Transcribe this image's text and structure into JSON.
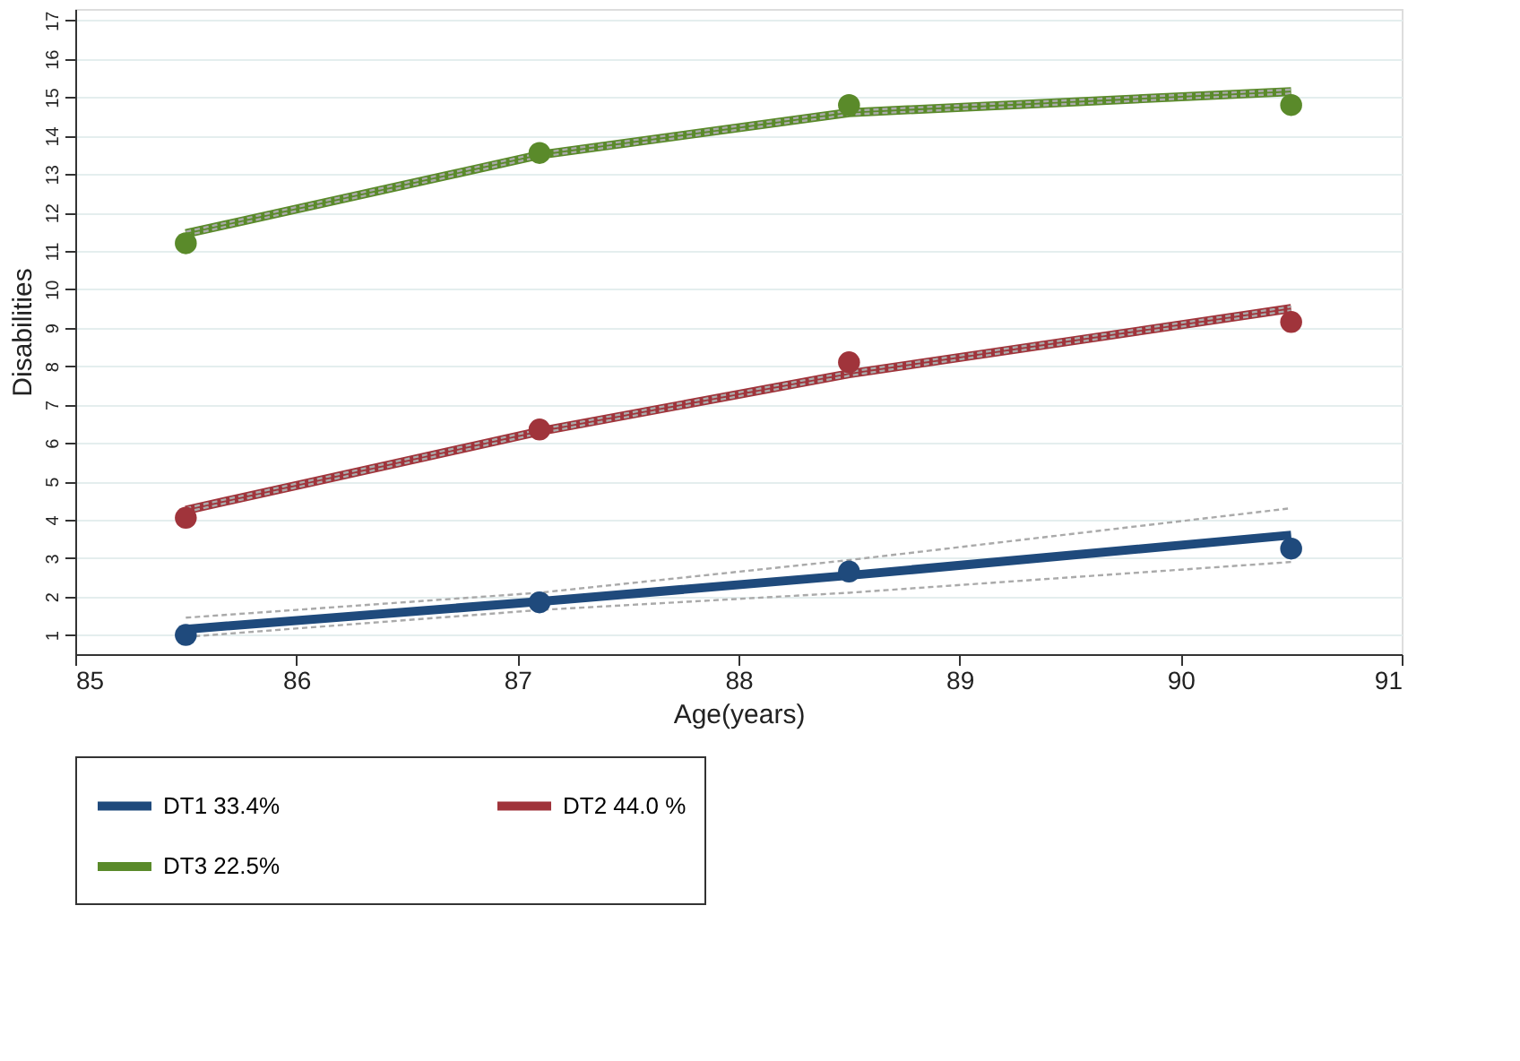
{
  "chart_data": {
    "type": "line",
    "xlabel": "Age(years)",
    "ylabel": "Disabilities",
    "xlim": [
      85,
      91
    ],
    "xticks": [
      85,
      86,
      87,
      88,
      89,
      90,
      91
    ],
    "ylim": [
      0.5,
      17.3
    ],
    "yticks": [
      1,
      2,
      3,
      4,
      5,
      6,
      7,
      8,
      9,
      10,
      11,
      12,
      13,
      14,
      15,
      16,
      17
    ],
    "grid": "y",
    "legend": "bottom",
    "marker": "none",
    "series": [
      {
        "color": "#aaaaaa",
        "line_style": "dashed",
        "x": [
          85.5,
          87.1,
          88.5,
          90.5
        ],
        "values": [
          0.95,
          1.65,
          2.1,
          2.9
        ]
      },
      {
        "color": "#aaaaaa",
        "line_style": "dashed",
        "x": [
          85.5,
          87.1,
          88.5,
          90.5
        ],
        "values": [
          1.45,
          2.1,
          2.95,
          4.3
        ]
      },
      {
        "name": "DT1 33.4%",
        "color": "#1f4a7c",
        "x": [
          85.5,
          87.1,
          88.5,
          90.5
        ],
        "values": [
          1.15,
          1.87,
          2.55,
          3.6
        ]
      },
      {
        "name": "DT2 44.0 %",
        "color": "#a0343b",
        "x": [
          85.5,
          87.1,
          88.5,
          90.5
        ],
        "values": [
          4.25,
          6.3,
          7.8,
          9.5
        ]
      },
      {
        "name": "DT3 22.5%",
        "color": "#5a8a2a",
        "x": [
          85.5,
          87.1,
          88.5,
          90.5
        ],
        "values": [
          11.45,
          13.5,
          14.6,
          15.15
        ]
      },
      {
        "color": "#aaaaaa",
        "line_style": "dashed",
        "x": [
          85.5,
          87.1,
          88.5,
          90.5
        ],
        "values": [
          4.2,
          6.25,
          7.75,
          9.45
        ]
      },
      {
        "color": "#aaaaaa",
        "line_style": "dashed",
        "x": [
          85.5,
          87.1,
          88.5,
          90.5
        ],
        "values": [
          4.3,
          6.35,
          7.85,
          9.55
        ]
      },
      {
        "color": "#aaaaaa",
        "line_style": "dashed",
        "x": [
          85.5,
          87.1,
          88.5,
          90.5
        ],
        "values": [
          11.4,
          13.45,
          14.55,
          15.1
        ]
      },
      {
        "color": "#aaaaaa",
        "line_style": "dashed",
        "x": [
          85.5,
          87.1,
          88.5,
          90.5
        ],
        "values": [
          11.5,
          13.55,
          14.65,
          15.2
        ]
      },
      {
        "type": "scatter",
        "marker": "circle",
        "color": "#1f4a7c",
        "x": [
          85.5,
          87.1,
          88.5,
          90.5
        ],
        "values": [
          1.0,
          1.85,
          2.65,
          3.25
        ]
      },
      {
        "type": "scatter",
        "marker": "circle",
        "color": "#a0343b",
        "x": [
          85.5,
          87.1,
          88.5,
          90.5
        ],
        "values": [
          4.05,
          6.35,
          8.1,
          9.15
        ]
      },
      {
        "type": "scatter",
        "marker": "circle",
        "color": "#5a8a2a",
        "x": [
          85.5,
          87.1,
          88.5,
          90.5
        ],
        "values": [
          11.2,
          13.55,
          14.8,
          14.8
        ]
      }
    ]
  }
}
